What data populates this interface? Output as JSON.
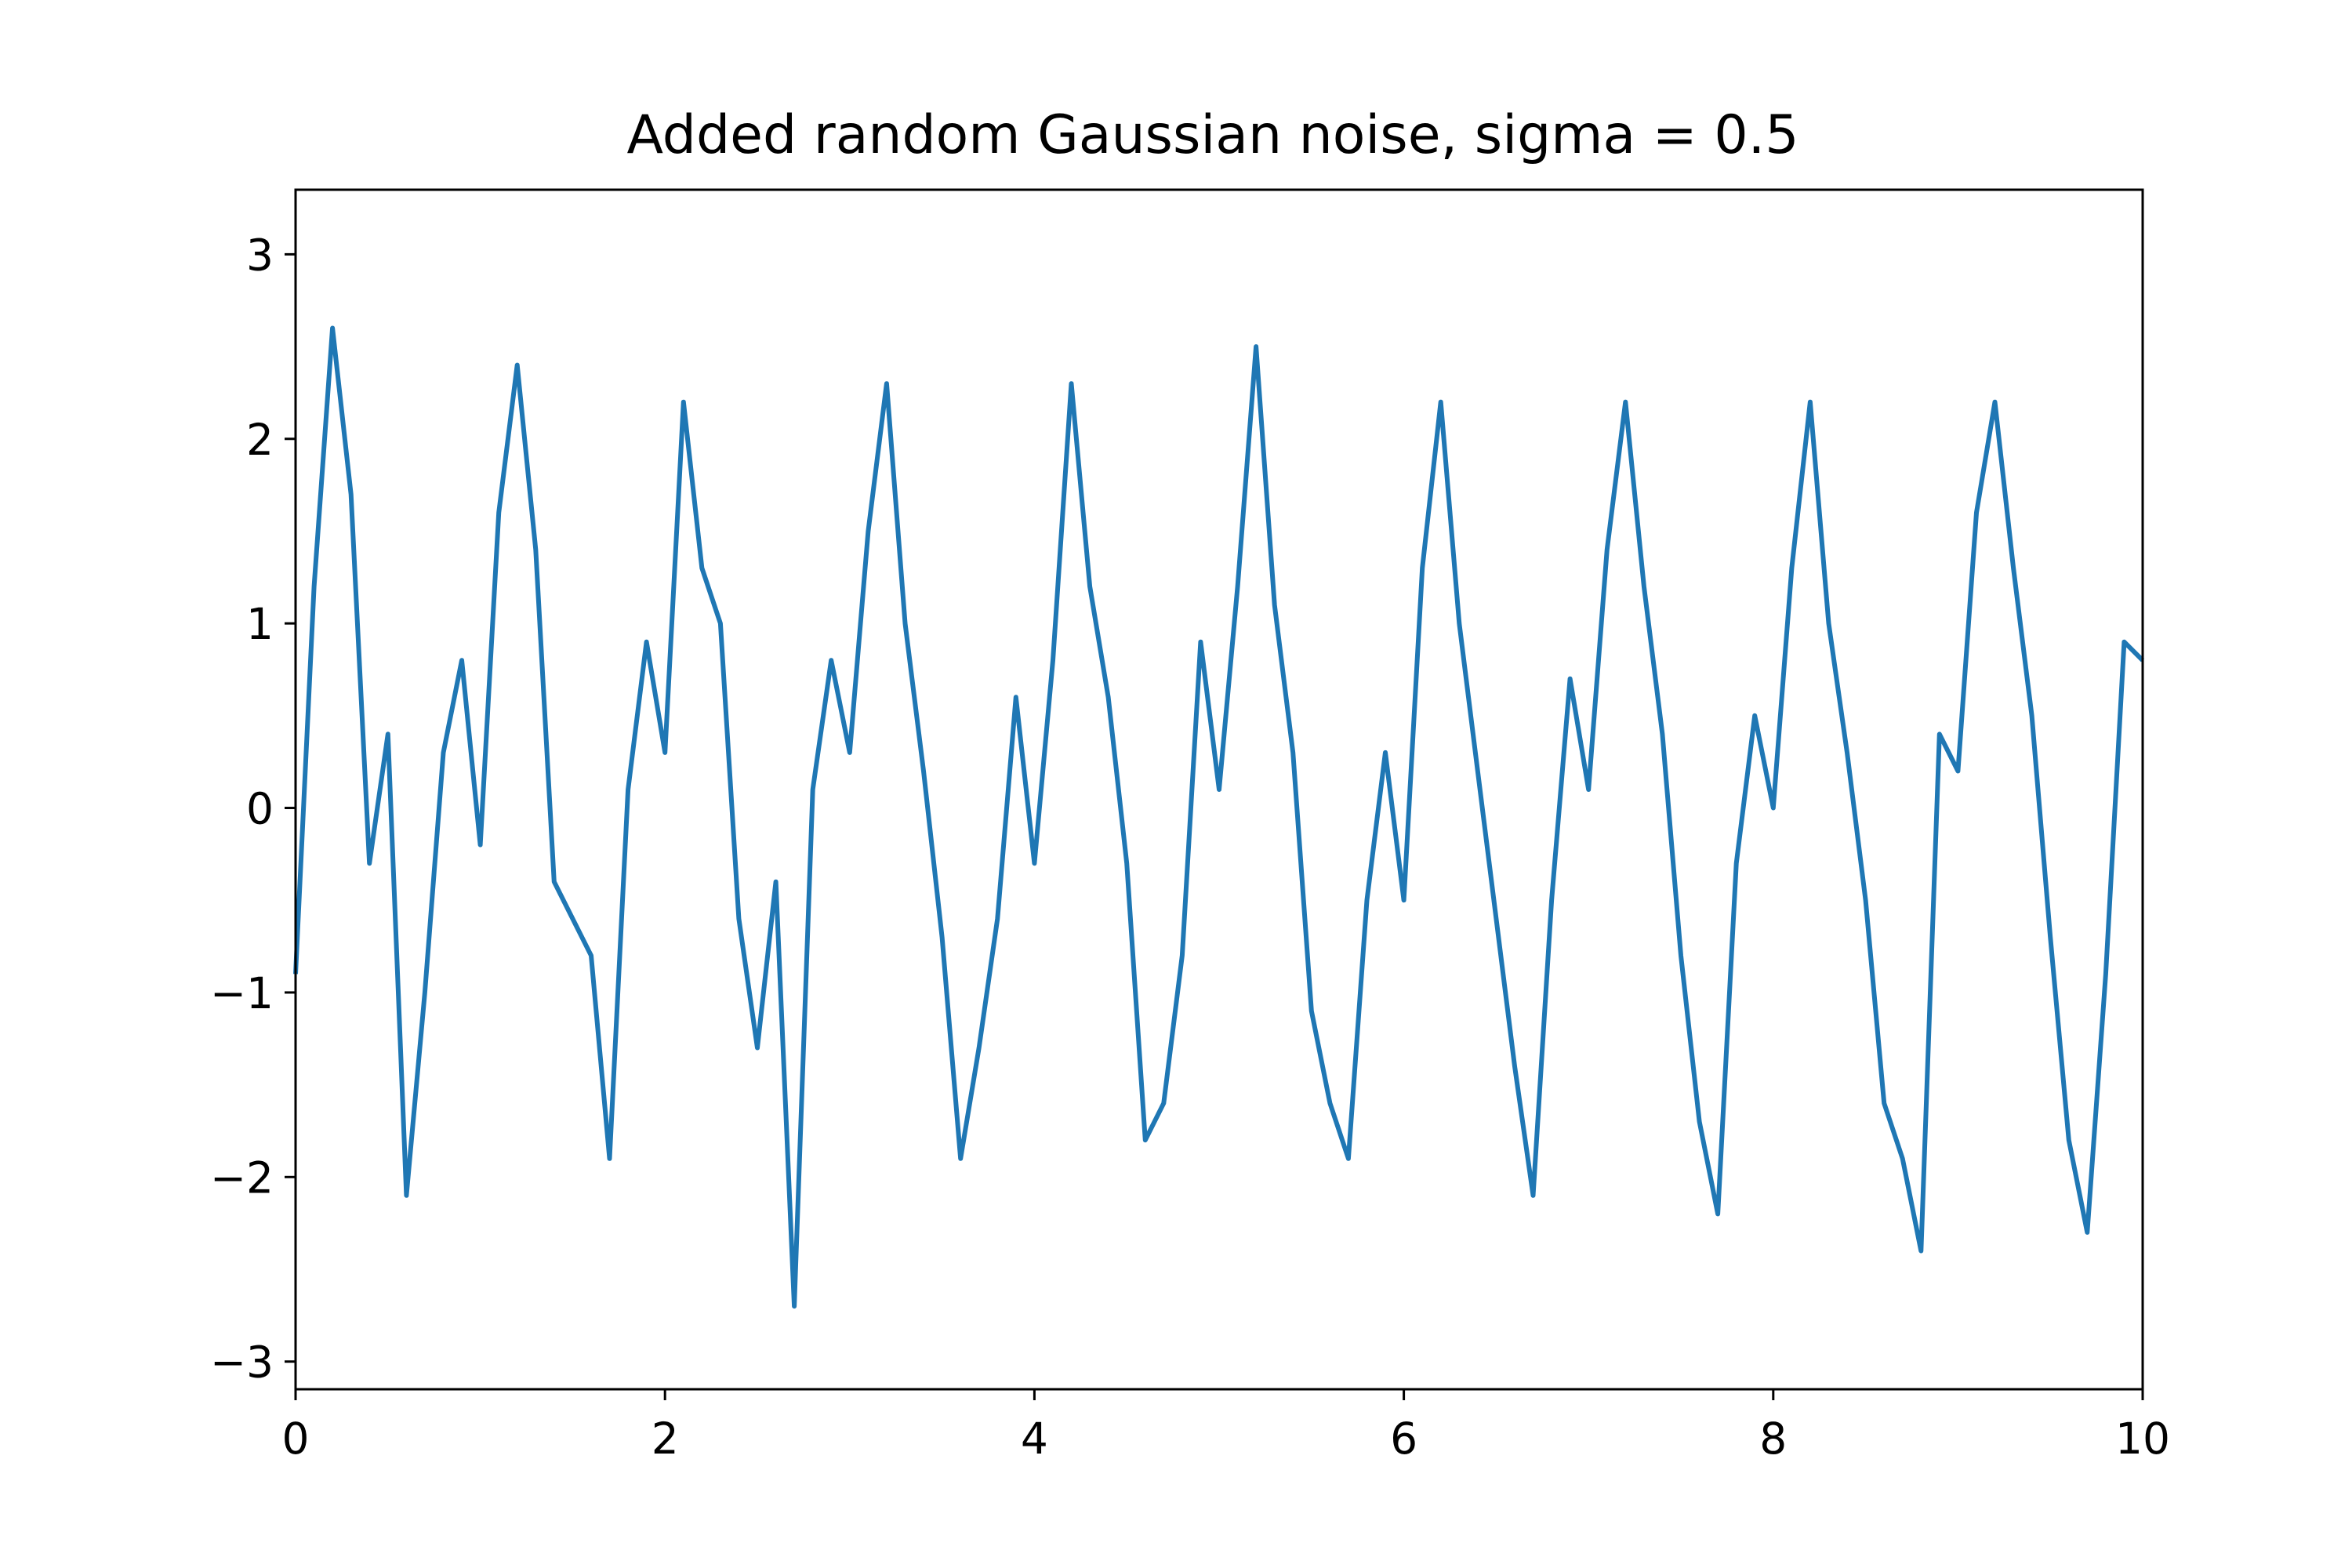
{
  "chart_data": {
    "type": "line",
    "title": "Added random Gaussian noise, sigma = 0.5",
    "xlabel": "",
    "ylabel": "",
    "xlim": [
      0,
      10
    ],
    "ylim": [
      -3.15,
      3.35
    ],
    "grid": false,
    "legend": "none",
    "color": "#1f77b4",
    "x_ticks": [
      0,
      2,
      4,
      6,
      8,
      10
    ],
    "x_tick_labels": [
      "0",
      "2",
      "4",
      "6",
      "8",
      "10"
    ],
    "y_ticks": [
      -3,
      -2,
      -1,
      0,
      1,
      2,
      3
    ],
    "y_tick_labels": [
      "−3",
      "−2",
      "−1",
      "0",
      "1",
      "2",
      "3"
    ],
    "series": [
      {
        "x": [
          0.0,
          0.1,
          0.2,
          0.3,
          0.4,
          0.5,
          0.6,
          0.7,
          0.8,
          0.9,
          1.0,
          1.1,
          1.2,
          1.3,
          1.4,
          1.5,
          1.6,
          1.7,
          1.8,
          1.9,
          2.0,
          2.1,
          2.2,
          2.3,
          2.4,
          2.5,
          2.6,
          2.7,
          2.8,
          2.9,
          3.0,
          3.1,
          3.2,
          3.3,
          3.4,
          3.5,
          3.6,
          3.7,
          3.8,
          3.9,
          4.0,
          4.1,
          4.2,
          4.3,
          4.4,
          4.5,
          4.6,
          4.7,
          4.8,
          4.9,
          5.0,
          5.1,
          5.2,
          5.3,
          5.4,
          5.5,
          5.6,
          5.7,
          5.8,
          5.9,
          6.0,
          6.1,
          6.2,
          6.3,
          6.4,
          6.5,
          6.6,
          6.7,
          6.8,
          6.9,
          7.0,
          7.1,
          7.2,
          7.3,
          7.4,
          7.5,
          7.6,
          7.7,
          7.8,
          7.9,
          8.0,
          8.1,
          8.2,
          8.3,
          8.4,
          8.5,
          8.6,
          8.7,
          8.8,
          8.9,
          9.0,
          9.1,
          9.2,
          9.3,
          9.4,
          9.5,
          9.6,
          9.7,
          9.8,
          9.9,
          10.0
        ],
        "y": [
          -0.9,
          1.2,
          2.6,
          1.7,
          -0.3,
          0.4,
          -2.1,
          -1.0,
          0.3,
          0.8,
          -0.2,
          1.6,
          2.4,
          1.4,
          -0.4,
          -0.6,
          -0.8,
          -1.9,
          0.1,
          0.9,
          0.3,
          2.2,
          1.3,
          1.0,
          -0.6,
          -1.3,
          -0.4,
          -2.7,
          0.1,
          0.8,
          0.3,
          1.5,
          2.3,
          1.0,
          0.2,
          -0.7,
          -1.9,
          -1.3,
          -0.6,
          0.6,
          -0.3,
          0.8,
          2.3,
          1.2,
          0.6,
          -0.3,
          -1.8,
          -1.6,
          -0.8,
          0.9,
          0.1,
          1.2,
          2.5,
          1.1,
          0.3,
          -1.1,
          -1.6,
          -1.9,
          -0.5,
          0.3,
          -0.5,
          1.3,
          2.2,
          1.0,
          0.2,
          -0.6,
          -1.4,
          -2.1,
          -0.5,
          0.7,
          0.1,
          1.4,
          2.2,
          1.2,
          0.4,
          -0.8,
          -1.7,
          -2.2,
          -0.3,
          0.5,
          0.0,
          1.3,
          2.2,
          1.0,
          0.3,
          -0.5,
          -1.6,
          -1.9,
          -2.4,
          0.4,
          0.2,
          1.6,
          2.2,
          1.3,
          0.5,
          -0.7,
          -1.8,
          -2.3,
          -0.9,
          0.9,
          0.8
        ]
      }
    ]
  }
}
